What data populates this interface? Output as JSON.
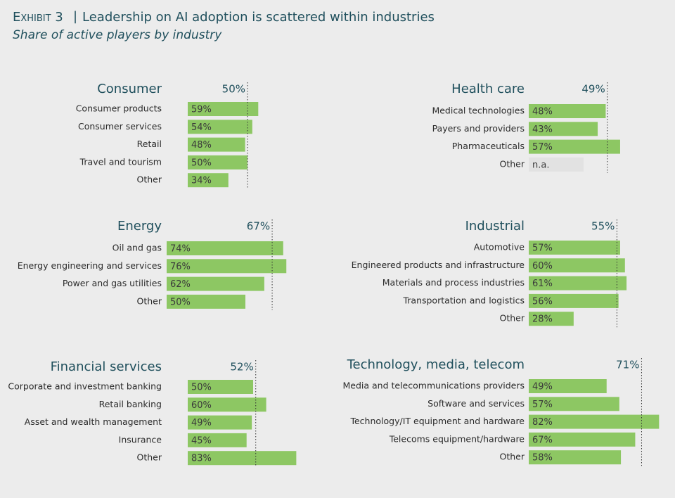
{
  "header": {
    "exhibit": "Exhibit 3",
    "title": "Leadership on AI adoption is scattered within industries",
    "subtitle": "Share of active players by industry"
  },
  "chart_data": [
    {
      "type": "bar",
      "title": "Consumer",
      "color": "#8dc763",
      "categories": [
        "Consumer products",
        "Consumer services",
        "Retail",
        "Travel and tourism",
        "Other"
      ],
      "values": [
        59,
        54,
        48,
        50,
        34
      ],
      "value_labels": [
        "59%",
        "54%",
        "48%",
        "50%",
        "34%"
      ],
      "average": {
        "value": 50,
        "label": "50%"
      }
    },
    {
      "type": "bar",
      "title": "Health care",
      "color": "#8dc763",
      "categories": [
        "Medical technologies",
        "Payers and providers",
        "Pharmaceuticals",
        "Other"
      ],
      "values": [
        48,
        43,
        57,
        null
      ],
      "value_labels": [
        "48%",
        "43%",
        "57%",
        "n.a."
      ],
      "average": {
        "value": 49,
        "label": "49%"
      }
    },
    {
      "type": "bar",
      "title": "Energy",
      "color": "#8dc763",
      "categories": [
        "Oil and gas",
        "Energy engineering and services",
        "Power and gas utilities",
        "Other"
      ],
      "values": [
        74,
        76,
        62,
        50
      ],
      "value_labels": [
        "74%",
        "76%",
        "62%",
        "50%"
      ],
      "average": {
        "value": 67,
        "label": "67%"
      }
    },
    {
      "type": "bar",
      "title": "Industrial",
      "color": "#8dc763",
      "categories": [
        "Automotive",
        "Engineered products and infrastructure",
        "Materials and process industries",
        "Transportation and logistics",
        "Other"
      ],
      "values": [
        57,
        60,
        61,
        56,
        28
      ],
      "value_labels": [
        "57%",
        "60%",
        "61%",
        "56%",
        "28%"
      ],
      "average": {
        "value": 55,
        "label": "55%"
      }
    },
    {
      "type": "bar",
      "title": "Financial services",
      "color": "#8dc763",
      "categories": [
        "Corporate and investment banking",
        "Retail banking",
        "Asset and wealth management",
        "Insurance",
        "Other"
      ],
      "values": [
        50,
        60,
        49,
        45,
        83
      ],
      "value_labels": [
        "50%",
        "60%",
        "49%",
        "45%",
        "83%"
      ],
      "average": {
        "value": 52,
        "label": "52%"
      }
    },
    {
      "type": "bar",
      "title": "Technology, media, telecom",
      "color": "#8dc763",
      "categories": [
        "Media and telecommunications providers",
        "Software and services",
        "Technology/IT equipment and hardware",
        "Telecoms equipment/hardware",
        "Other"
      ],
      "values": [
        49,
        57,
        82,
        67,
        58
      ],
      "value_labels": [
        "49%",
        "57%",
        "82%",
        "67%",
        "58%"
      ],
      "average": {
        "value": 71,
        "label": "71%"
      }
    }
  ]
}
